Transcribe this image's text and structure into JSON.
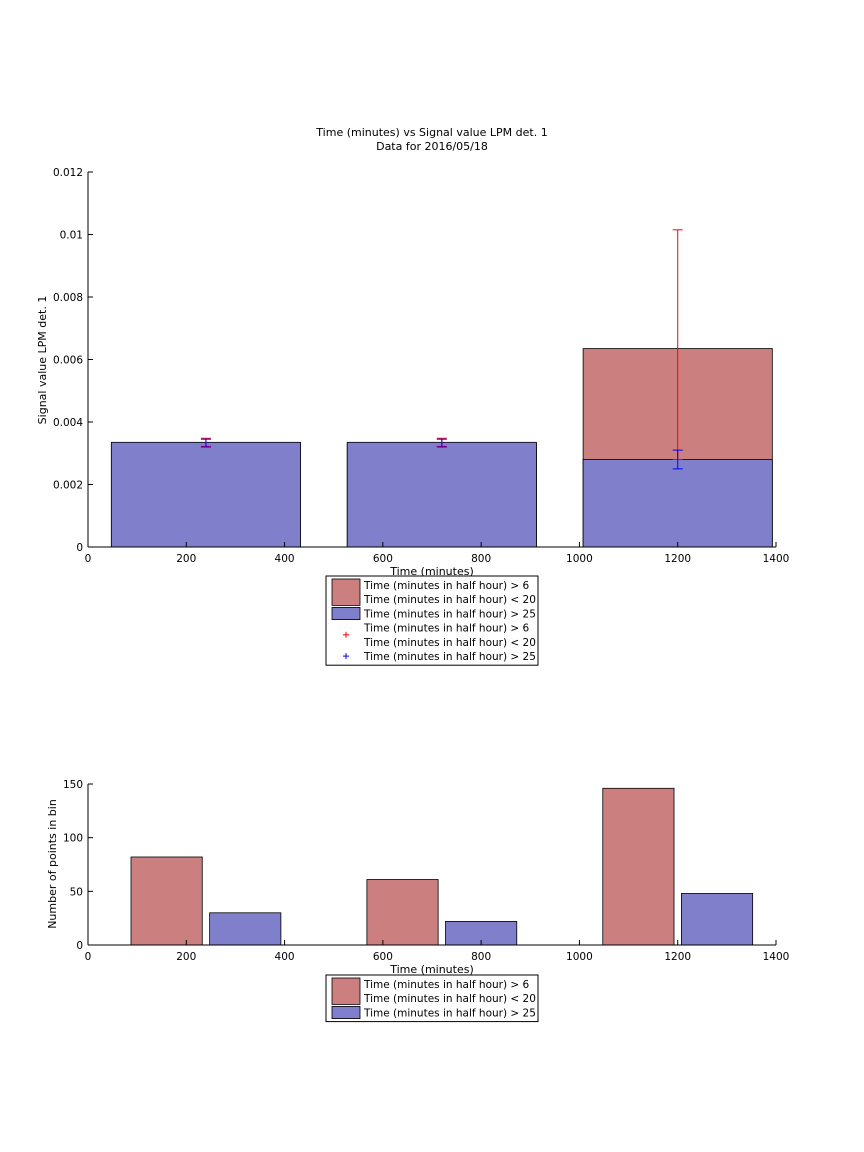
{
  "colors": {
    "series1": "#cc7f7f",
    "series2": "#7f7fcc",
    "errorbar1": "#ff0000",
    "errorbar2": "#0000ff"
  },
  "chart_data": [
    {
      "type": "bar",
      "title": "Time (minutes) vs Signal value LPM det. 1",
      "subtitle": "Data for 2016/05/18",
      "xlabel": "Time (minutes)",
      "ylabel": "Signal value LPM det. 1",
      "xlim": [
        0,
        1400
      ],
      "ylim": [
        0,
        0.012
      ],
      "xticks": [
        0,
        200,
        400,
        600,
        800,
        1000,
        1200,
        1400
      ],
      "yticks": [
        0,
        0.002,
        0.004,
        0.006,
        0.008,
        0.01,
        0.012
      ],
      "xtick_labels": [
        "0",
        "200",
        "400",
        "600",
        "800",
        "1000",
        "1200",
        "1400"
      ],
      "ytick_labels": [
        "0",
        "0.002",
        "0.004",
        "0.006",
        "0.008",
        "0.01",
        "0.012"
      ],
      "grid": false,
      "overlay": true,
      "x": [
        240,
        720,
        1200
      ],
      "bar_width": 385,
      "series": [
        {
          "name_lines": [
            "Time (minutes in half hour) > 6",
            "Time (minutes in half hour) < 20"
          ],
          "values": [
            0.0033,
            0.0033,
            0.00635
          ],
          "err_low": [
            0.00322,
            0.00322,
            0.0028
          ],
          "err_high": [
            0.00348,
            0.00348,
            0.01015
          ]
        },
        {
          "name_lines": [
            "Time (minutes in half hour) > 25"
          ],
          "values": [
            0.00335,
            0.00335,
            0.0028
          ],
          "err_low": [
            0.0032,
            0.0032,
            0.0025
          ],
          "err_high": [
            0.00345,
            0.00345,
            0.0031
          ]
        }
      ],
      "legend": {
        "placement": "below",
        "entries": [
          {
            "kind": "bar",
            "color": "series1",
            "lines": [
              "Time (minutes in half hour) > 6",
              "Time (minutes in half hour) < 20"
            ]
          },
          {
            "kind": "bar",
            "color": "series2",
            "lines": [
              "Time (minutes in half hour) > 25"
            ]
          },
          {
            "kind": "marker",
            "color": "errorbar1",
            "lines": [
              "Time (minutes in half hour) > 6",
              "Time (minutes in half hour) < 20"
            ]
          },
          {
            "kind": "marker",
            "color": "errorbar2",
            "lines": [
              "Time (minutes in half hour) > 25"
            ]
          }
        ]
      }
    },
    {
      "type": "bar",
      "title": "",
      "xlabel": "Time (minutes)",
      "ylabel": "Number of points in bin",
      "xlim": [
        0,
        1400
      ],
      "ylim": [
        0,
        150
      ],
      "xticks": [
        0,
        200,
        400,
        600,
        800,
        1000,
        1200,
        1400
      ],
      "yticks": [
        0,
        50,
        100,
        150
      ],
      "xtick_labels": [
        "0",
        "200",
        "400",
        "600",
        "800",
        "1000",
        "1200",
        "1400"
      ],
      "ytick_labels": [
        "0",
        "50",
        "100",
        "150"
      ],
      "grid": false,
      "grouped": true,
      "x": [
        240,
        720,
        1200
      ],
      "bar_width": 145,
      "group_offset": 80,
      "series": [
        {
          "name_lines": [
            "Time (minutes in half hour) > 6",
            "Time (minutes in half hour) < 20"
          ],
          "values": [
            82,
            61,
            146
          ]
        },
        {
          "name_lines": [
            "Time (minutes in half hour) > 25"
          ],
          "values": [
            30,
            22,
            48
          ]
        }
      ],
      "legend": {
        "placement": "below",
        "entries": [
          {
            "kind": "bar",
            "color": "series1",
            "lines": [
              "Time (minutes in half hour) > 6",
              "Time (minutes in half hour) < 20"
            ]
          },
          {
            "kind": "bar",
            "color": "series2",
            "lines": [
              "Time (minutes in half hour) > 25"
            ]
          }
        ]
      }
    }
  ]
}
